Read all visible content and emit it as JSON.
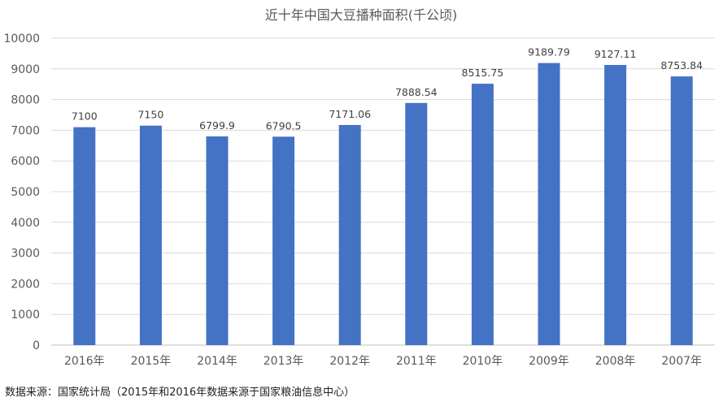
{
  "chart_data": {
    "type": "bar",
    "title": "近十年中国大豆播种面积(千公顷)",
    "categories": [
      "2016年",
      "2015年",
      "2014年",
      "2013年",
      "2012年",
      "2011年",
      "2010年",
      "2009年",
      "2008年",
      "2007年"
    ],
    "values": [
      7100,
      7150,
      6799.9,
      6790.5,
      7171.06,
      7888.54,
      8515.75,
      9189.79,
      9127.11,
      8753.84
    ],
    "value_labels": [
      "7100",
      "7150",
      "6799.9",
      "6790.5",
      "7171.06",
      "7888.54",
      "8515.75",
      "9189.79",
      "9127.11",
      "8753.84"
    ],
    "ylim": [
      0,
      10000
    ],
    "yticks": [
      0,
      1000,
      2000,
      3000,
      4000,
      5000,
      6000,
      7000,
      8000,
      9000,
      10000
    ],
    "grid": true,
    "legend": "none",
    "bar_color": "#4472C4"
  },
  "footnote": "数据来源：国家统计局（2015年和2016年数据来源于国家粮油信息中心）"
}
